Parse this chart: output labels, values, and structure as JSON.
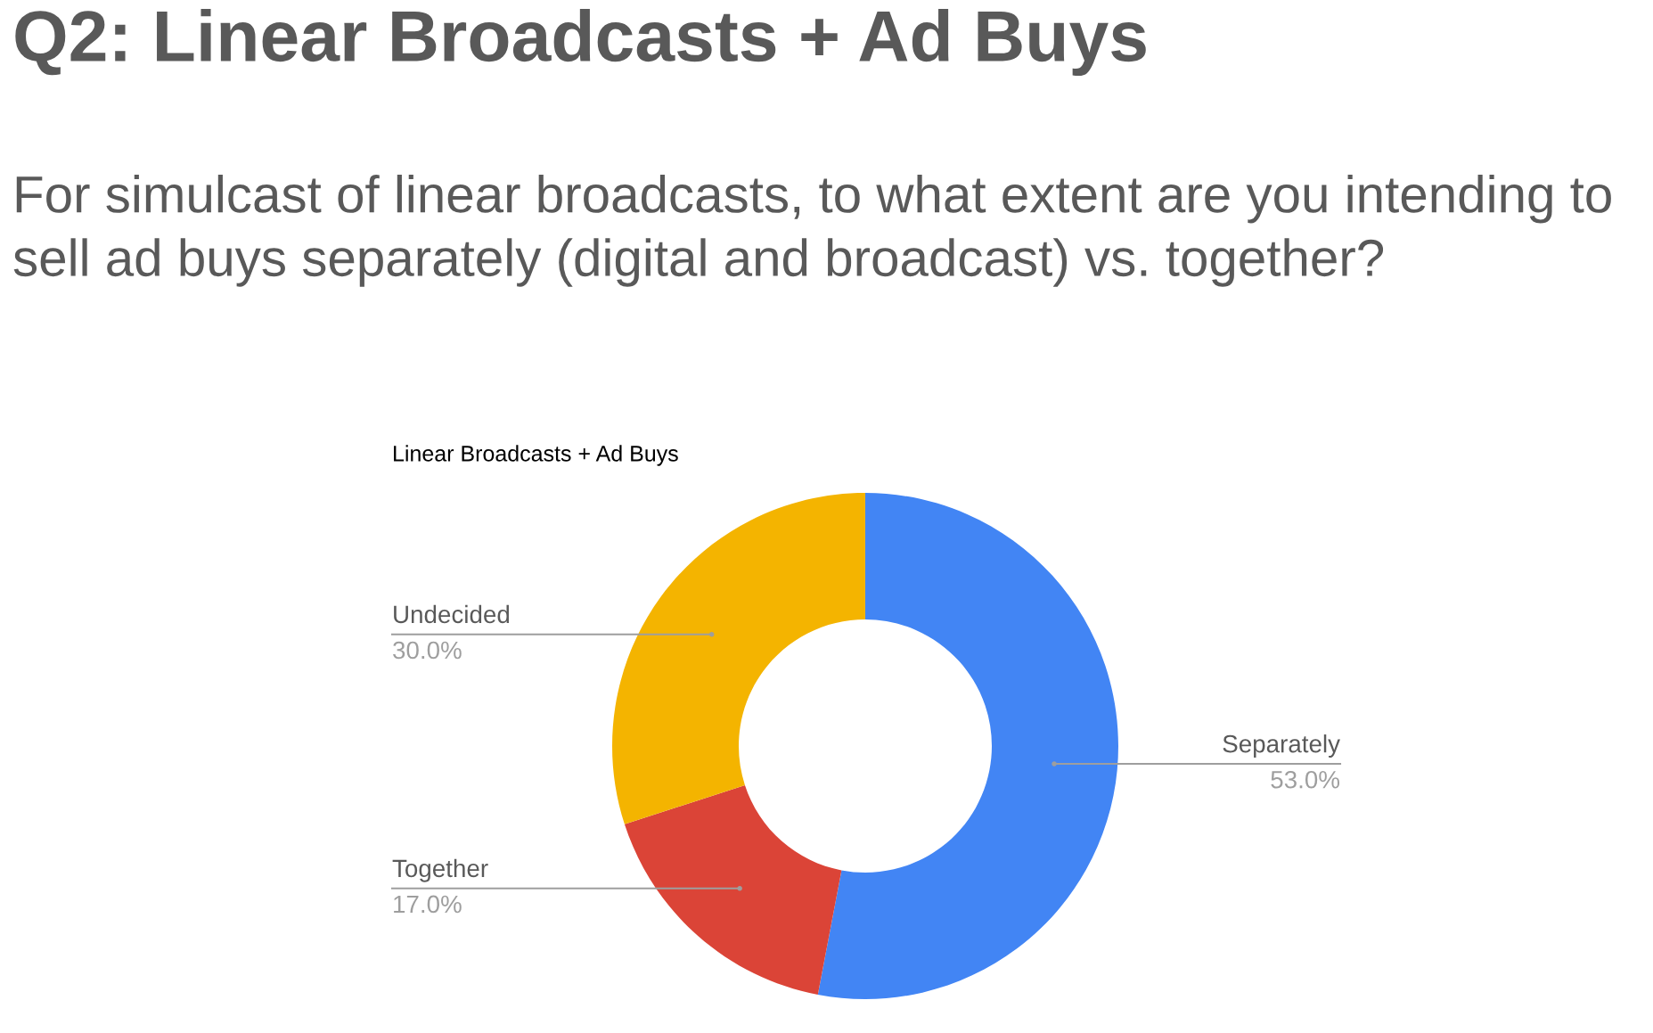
{
  "chart_data": {
    "type": "donut",
    "title": "Q2: Linear Broadcasts + Ad Buys",
    "subtitle": "For simulcast of linear broadcasts, to what extent are you intending to sell ad buys separately (digital and broadcast) vs. together?",
    "annotations": [
      "Linear Broadcasts + Ad Buys"
    ],
    "categories": [
      "Separately",
      "Together",
      "Undecided"
    ],
    "values": [
      53.0,
      17.0,
      30.0
    ],
    "value_labels": [
      "53.0%",
      "17.0%",
      "30.0%"
    ],
    "colors": [
      "#4285f4",
      "#db4437",
      "#f4b400"
    ]
  }
}
